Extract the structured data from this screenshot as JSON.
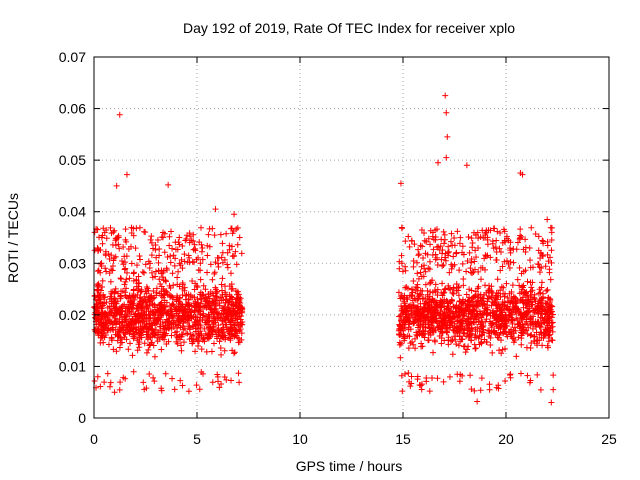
{
  "chart_data": {
    "type": "scatter",
    "title": "Day 192 of 2019, Rate Of TEC Index for receiver xplo",
    "xlabel": "GPS time / hours",
    "ylabel": "ROTI / TECUs",
    "xlim": [
      0,
      25
    ],
    "ylim": [
      0,
      0.07
    ],
    "x_ticks": [
      0,
      5,
      10,
      15,
      20,
      25
    ],
    "x_tick_labels": [
      "0",
      "5",
      "10",
      "15",
      "20",
      "25"
    ],
    "y_ticks": [
      0,
      0.01,
      0.02,
      0.03,
      0.04,
      0.05,
      0.06,
      0.07
    ],
    "y_tick_labels": [
      "0",
      "0.01",
      "0.02",
      "0.03",
      "0.04",
      "0.05",
      "0.06",
      "0.07"
    ],
    "grid": true,
    "marker": "+",
    "marker_color": "#ff0000",
    "series": [
      {
        "name": "ROTI",
        "segments": [
          {
            "x_start": 0.0,
            "x_end": 7.2,
            "typical_range": [
              0.008,
              0.03
            ]
          },
          {
            "x_start": 14.8,
            "x_end": 22.3,
            "typical_range": [
              0.008,
              0.03
            ]
          }
        ],
        "highlight_points": [
          {
            "x": 1.25,
            "y": 0.0588
          },
          {
            "x": 1.6,
            "y": 0.0472
          },
          {
            "x": 1.1,
            "y": 0.045
          },
          {
            "x": 3.6,
            "y": 0.0452
          },
          {
            "x": 5.9,
            "y": 0.0405
          },
          {
            "x": 6.8,
            "y": 0.0395
          },
          {
            "x": 14.9,
            "y": 0.0455
          },
          {
            "x": 17.05,
            "y": 0.0625
          },
          {
            "x": 17.1,
            "y": 0.0592
          },
          {
            "x": 17.15,
            "y": 0.0545
          },
          {
            "x": 17.1,
            "y": 0.0505
          },
          {
            "x": 16.7,
            "y": 0.0495
          },
          {
            "x": 18.1,
            "y": 0.049
          },
          {
            "x": 20.7,
            "y": 0.0475
          },
          {
            "x": 20.8,
            "y": 0.0472
          },
          {
            "x": 22.0,
            "y": 0.0385
          },
          {
            "x": 18.6,
            "y": 0.0032
          },
          {
            "x": 22.2,
            "y": 0.003
          },
          {
            "x": 1.0,
            "y": 0.005
          }
        ]
      }
    ]
  }
}
